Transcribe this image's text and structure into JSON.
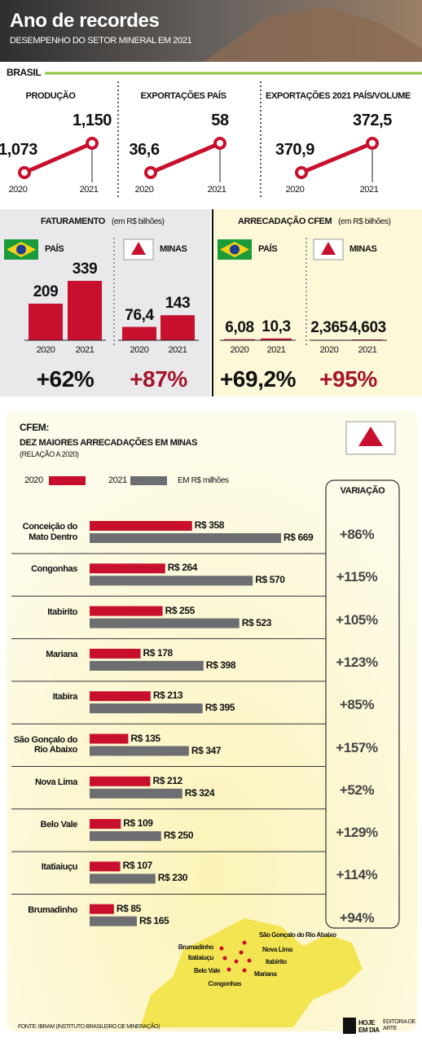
{
  "header": {
    "title": "Ano de recordes",
    "subtitle": "DESEMPENHO DO SETOR MINERAL EM 2021",
    "section": "BRASIL"
  },
  "chart_data": [
    {
      "type": "line",
      "title": "PRODUÇÃO",
      "categories": [
        "2020",
        "2021"
      ],
      "values": [
        1.073,
        1.15
      ],
      "value_labels": [
        "1,073",
        "1,150"
      ],
      "color": "#c8102e"
    },
    {
      "type": "line",
      "title": "EXPORTAÇÕES PAÍS",
      "categories": [
        "2020",
        "2021"
      ],
      "values": [
        36.6,
        58
      ],
      "value_labels": [
        "36,6",
        "58"
      ],
      "color": "#c8102e"
    },
    {
      "type": "line",
      "title": "EXPORTAÇÕES 2021 PAÍS/VOLUME",
      "categories": [
        "2020",
        "2021"
      ],
      "values": [
        370.9,
        372.5
      ],
      "value_labels": [
        "370,9",
        "372,5"
      ],
      "color": "#c8102e"
    },
    {
      "type": "bar",
      "title": "FATURAMENTO",
      "subtitle": "(em R$ bilhões)",
      "color": "#c8102e",
      "groups": [
        {
          "name": "PAÍS",
          "categories": [
            "2020",
            "2021"
          ],
          "values": [
            209,
            339
          ],
          "change": "+62%",
          "change_color": "#111111"
        },
        {
          "name": "MINAS",
          "categories": [
            "2020",
            "2021"
          ],
          "values": [
            76.4,
            143
          ],
          "value_labels": [
            "76,4",
            "143"
          ],
          "change": "+87%",
          "change_color": "#a3162b"
        }
      ]
    },
    {
      "type": "bar",
      "title": "ARRECADAÇÃO CFEM",
      "subtitle": "(em R$ bilhões)",
      "color": "#c8102e",
      "groups": [
        {
          "name": "PAÍS",
          "categories": [
            "2020",
            "2021"
          ],
          "values": [
            6.08,
            10.3
          ],
          "value_labels": [
            "6,08",
            "10,3"
          ],
          "change": "+69,2%",
          "change_color": "#111111"
        },
        {
          "name": "MINAS",
          "categories": [
            "2020",
            "2021"
          ],
          "values": [
            2.365,
            4.603
          ],
          "value_labels": [
            "2,365",
            "4,603"
          ],
          "change": "+95%",
          "change_color": "#a3162b"
        }
      ]
    },
    {
      "type": "barh",
      "title": "CFEM:",
      "subtitle": "DEZ MAIORES ARRECADAÇÕES EM MINAS",
      "note": "(RELAÇÃO A 2020)",
      "unit": "EM R$ milhões",
      "variation_title": "VARIAÇÃO",
      "categories": [
        "Conceição do Mato Dentro",
        "Congonhas",
        "Itabirito",
        "Mariana",
        "Itabira",
        "São Gonçalo do Rio Abaixo",
        "Nova Lima",
        "Belo Vale",
        "Itatiaiuçu",
        "Brumadinho"
      ],
      "series": [
        {
          "name": "2020",
          "color": "#c8102e",
          "values": [
            358,
            264,
            255,
            178,
            213,
            135,
            212,
            109,
            107,
            85
          ],
          "value_labels": [
            "R$ 358",
            "R$ 264",
            "R$ 255",
            "R$ 178",
            "R$ 213",
            "R$ 135",
            "R$ 212",
            "R$ 109",
            "R$ 107",
            "R$ 85"
          ]
        },
        {
          "name": "2021",
          "color": "#6d6e71",
          "values": [
            669,
            570,
            523,
            398,
            395,
            347,
            324,
            250,
            230,
            165
          ],
          "value_labels": [
            "R$ 669",
            "R$ 570",
            "R$ 523",
            "R$ 398",
            "R$ 395",
            "R$ 347",
            "R$ 324",
            "R$ 250",
            "R$ 230",
            "R$ 165"
          ]
        }
      ],
      "variation_labels": [
        "+86%",
        "+115%",
        "+105%",
        "+123%",
        "+85%",
        "+157%",
        "+52%",
        "+129%",
        "+114%",
        "+94%"
      ]
    }
  ],
  "map": {
    "labels": [
      "Brumadinho",
      "Itatiaiuçu",
      "Belo Vale",
      "Congonhas",
      "São Gonçalo do Rio Abaixo",
      "Nova Lima",
      "Itabirito",
      "Mariana"
    ]
  },
  "footer": {
    "source": "FONTE: IBRAM (INSTITUTO BRASILEIRO DE MINERAÇÃO)",
    "logo": "HOJE EM DIA",
    "credit": "EDITORIA DE ARTE"
  }
}
